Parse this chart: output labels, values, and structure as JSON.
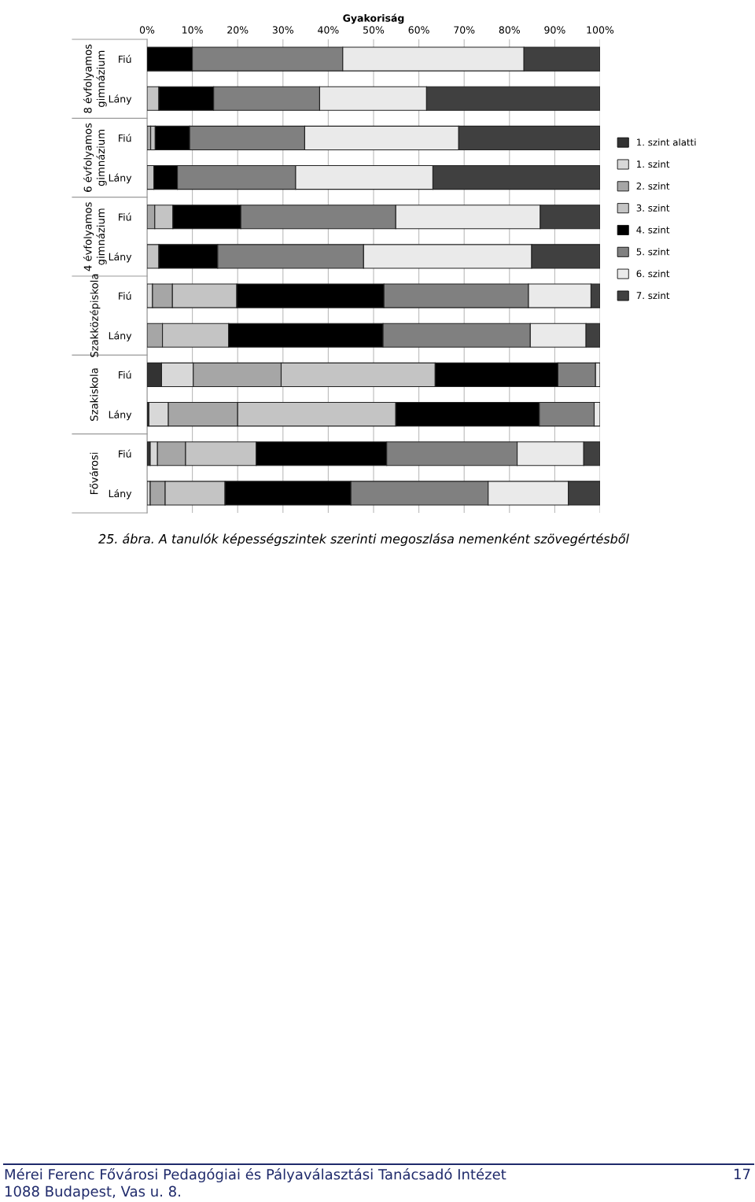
{
  "chart_data": {
    "type": "bar",
    "orientation": "horizontal",
    "stacked": true,
    "xlabel": "Gyakoriság",
    "categories": [
      "Fiú",
      "Lány",
      "Fiú",
      "Lány",
      "Fiú",
      "Lány",
      "Fiú",
      "Lány",
      "Fiú",
      "Lány",
      "Fiú",
      "Lány"
    ],
    "series": [
      {
        "name": "1. szint alatti",
        "color": "#333333",
        "values": [
          0,
          0,
          0,
          0,
          0,
          0,
          null,
          0,
          3.2,
          0.4,
          0.7,
          0
        ]
      },
      {
        "name": "1. szint",
        "color": "#d8d8d8",
        "values": [
          0,
          0,
          0,
          0,
          0,
          0,
          1.2,
          0,
          7.0,
          4.3,
          1.6,
          0.7
        ]
      },
      {
        "name": "2. szint",
        "color": "#a6a6a6",
        "values": [
          0,
          0,
          0.8,
          0,
          1.7,
          0,
          4.4,
          3.4,
          19.4,
          15.3,
          6.2,
          3.3
        ]
      },
      {
        "name": "3. szint",
        "color": "#c4c4c4",
        "values": [
          0,
          2.6,
          1.0,
          1.5,
          4.0,
          2.6,
          14.2,
          14.6,
          34.0,
          34.9,
          15.6,
          13.2
        ]
      },
      {
        "name": "4. szint",
        "color": "#000000",
        "values": [
          10.0,
          12.1,
          7.6,
          5.2,
          15.0,
          13.0,
          32.5,
          34.1,
          27.1,
          31.7,
          28.8,
          27.8
        ]
      },
      {
        "name": "5. szint",
        "color": "#808080",
        "values": [
          33.2,
          23.4,
          25.4,
          26.1,
          34.2,
          32.2,
          31.9,
          32.5,
          8.3,
          12.1,
          28.8,
          30.3
        ]
      },
      {
        "name": "6. szint",
        "color": "#eaeaea",
        "values": [
          40.0,
          23.6,
          34.0,
          30.3,
          31.9,
          37.1,
          13.8,
          12.3,
          1.0,
          1.3,
          14.7,
          17.7
        ]
      },
      {
        "name": "7. szint",
        "color": "#404040",
        "values": [
          16.8,
          38.3,
          31.2,
          36.9,
          13.2,
          15.1,
          2.0,
          3.1,
          0,
          0,
          3.6,
          7.0
        ]
      }
    ],
    "xlim": [
      0,
      100
    ],
    "xticks": [
      {
        "value": 0,
        "label": "0%"
      },
      {
        "value": 10,
        "label": "10%"
      },
      {
        "value": 20,
        "label": "20%"
      },
      {
        "value": 30,
        "label": "30%"
      },
      {
        "value": 40,
        "label": "40%"
      },
      {
        "value": 50,
        "label": "50%"
      },
      {
        "value": 60,
        "label": "60%"
      },
      {
        "value": 70,
        "label": "70%"
      },
      {
        "value": 80,
        "label": "80%"
      },
      {
        "value": 90,
        "label": "90%"
      },
      {
        "value": 100,
        "label": "100%"
      }
    ],
    "grid": "x",
    "legend": "right",
    "annotations": [
      "8 évfolyamos\ngimnázium",
      "6 évfolyamos\ngimnázium",
      "4 évfolyamos\ngimnázium",
      "Szakközépiskola",
      "Szakiskola",
      "Fővárosi",
      "25. ábra. A tanulók képességszintek szerinti megoszlása nemenként szövegértésből",
      "Mérei Ferenc Fővárosi Pedagógiai és Pályaválasztási Tanácsadó Intézet",
      "17",
      "1088 Budapest, Vas u. 8."
    ]
  }
}
